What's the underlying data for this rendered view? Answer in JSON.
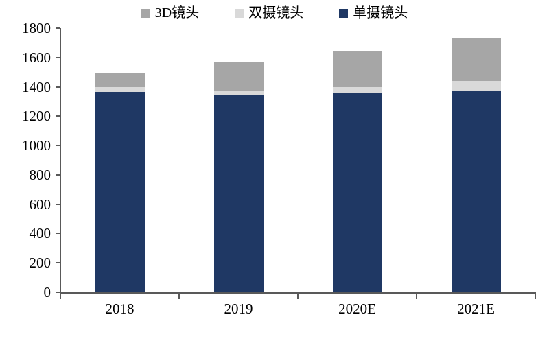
{
  "chart_data": {
    "type": "bar",
    "stacked": true,
    "title": "",
    "xlabel": "",
    "ylabel": "",
    "categories": [
      "2018",
      "2019",
      "2020E",
      "2021E"
    ],
    "series": [
      {
        "key": "single-lens",
        "name": "单摄镜头",
        "color": "#1F3864",
        "values": [
          1365,
          1345,
          1355,
          1370
        ]
      },
      {
        "key": "dual-lens",
        "name": "双摄镜头",
        "color": "#D9D9D9",
        "values": [
          35,
          30,
          45,
          70
        ]
      },
      {
        "key": "3d-lens",
        "name": "3D镜头",
        "color": "#A6A6A6",
        "values": [
          95,
          190,
          240,
          290
        ]
      }
    ],
    "legend_order": [
      "3d-lens",
      "dual-lens",
      "single-lens"
    ],
    "legend_position": "top",
    "ylim": [
      0,
      1800
    ],
    "ytick_step": 200,
    "ytick_labels": [
      "0",
      "200",
      "400",
      "600",
      "800",
      "1000",
      "1200",
      "1400",
      "1600",
      "1800"
    ],
    "grid": false,
    "axis_color": "#595959",
    "text_color": "#000000",
    "background": "#ffffff"
  }
}
